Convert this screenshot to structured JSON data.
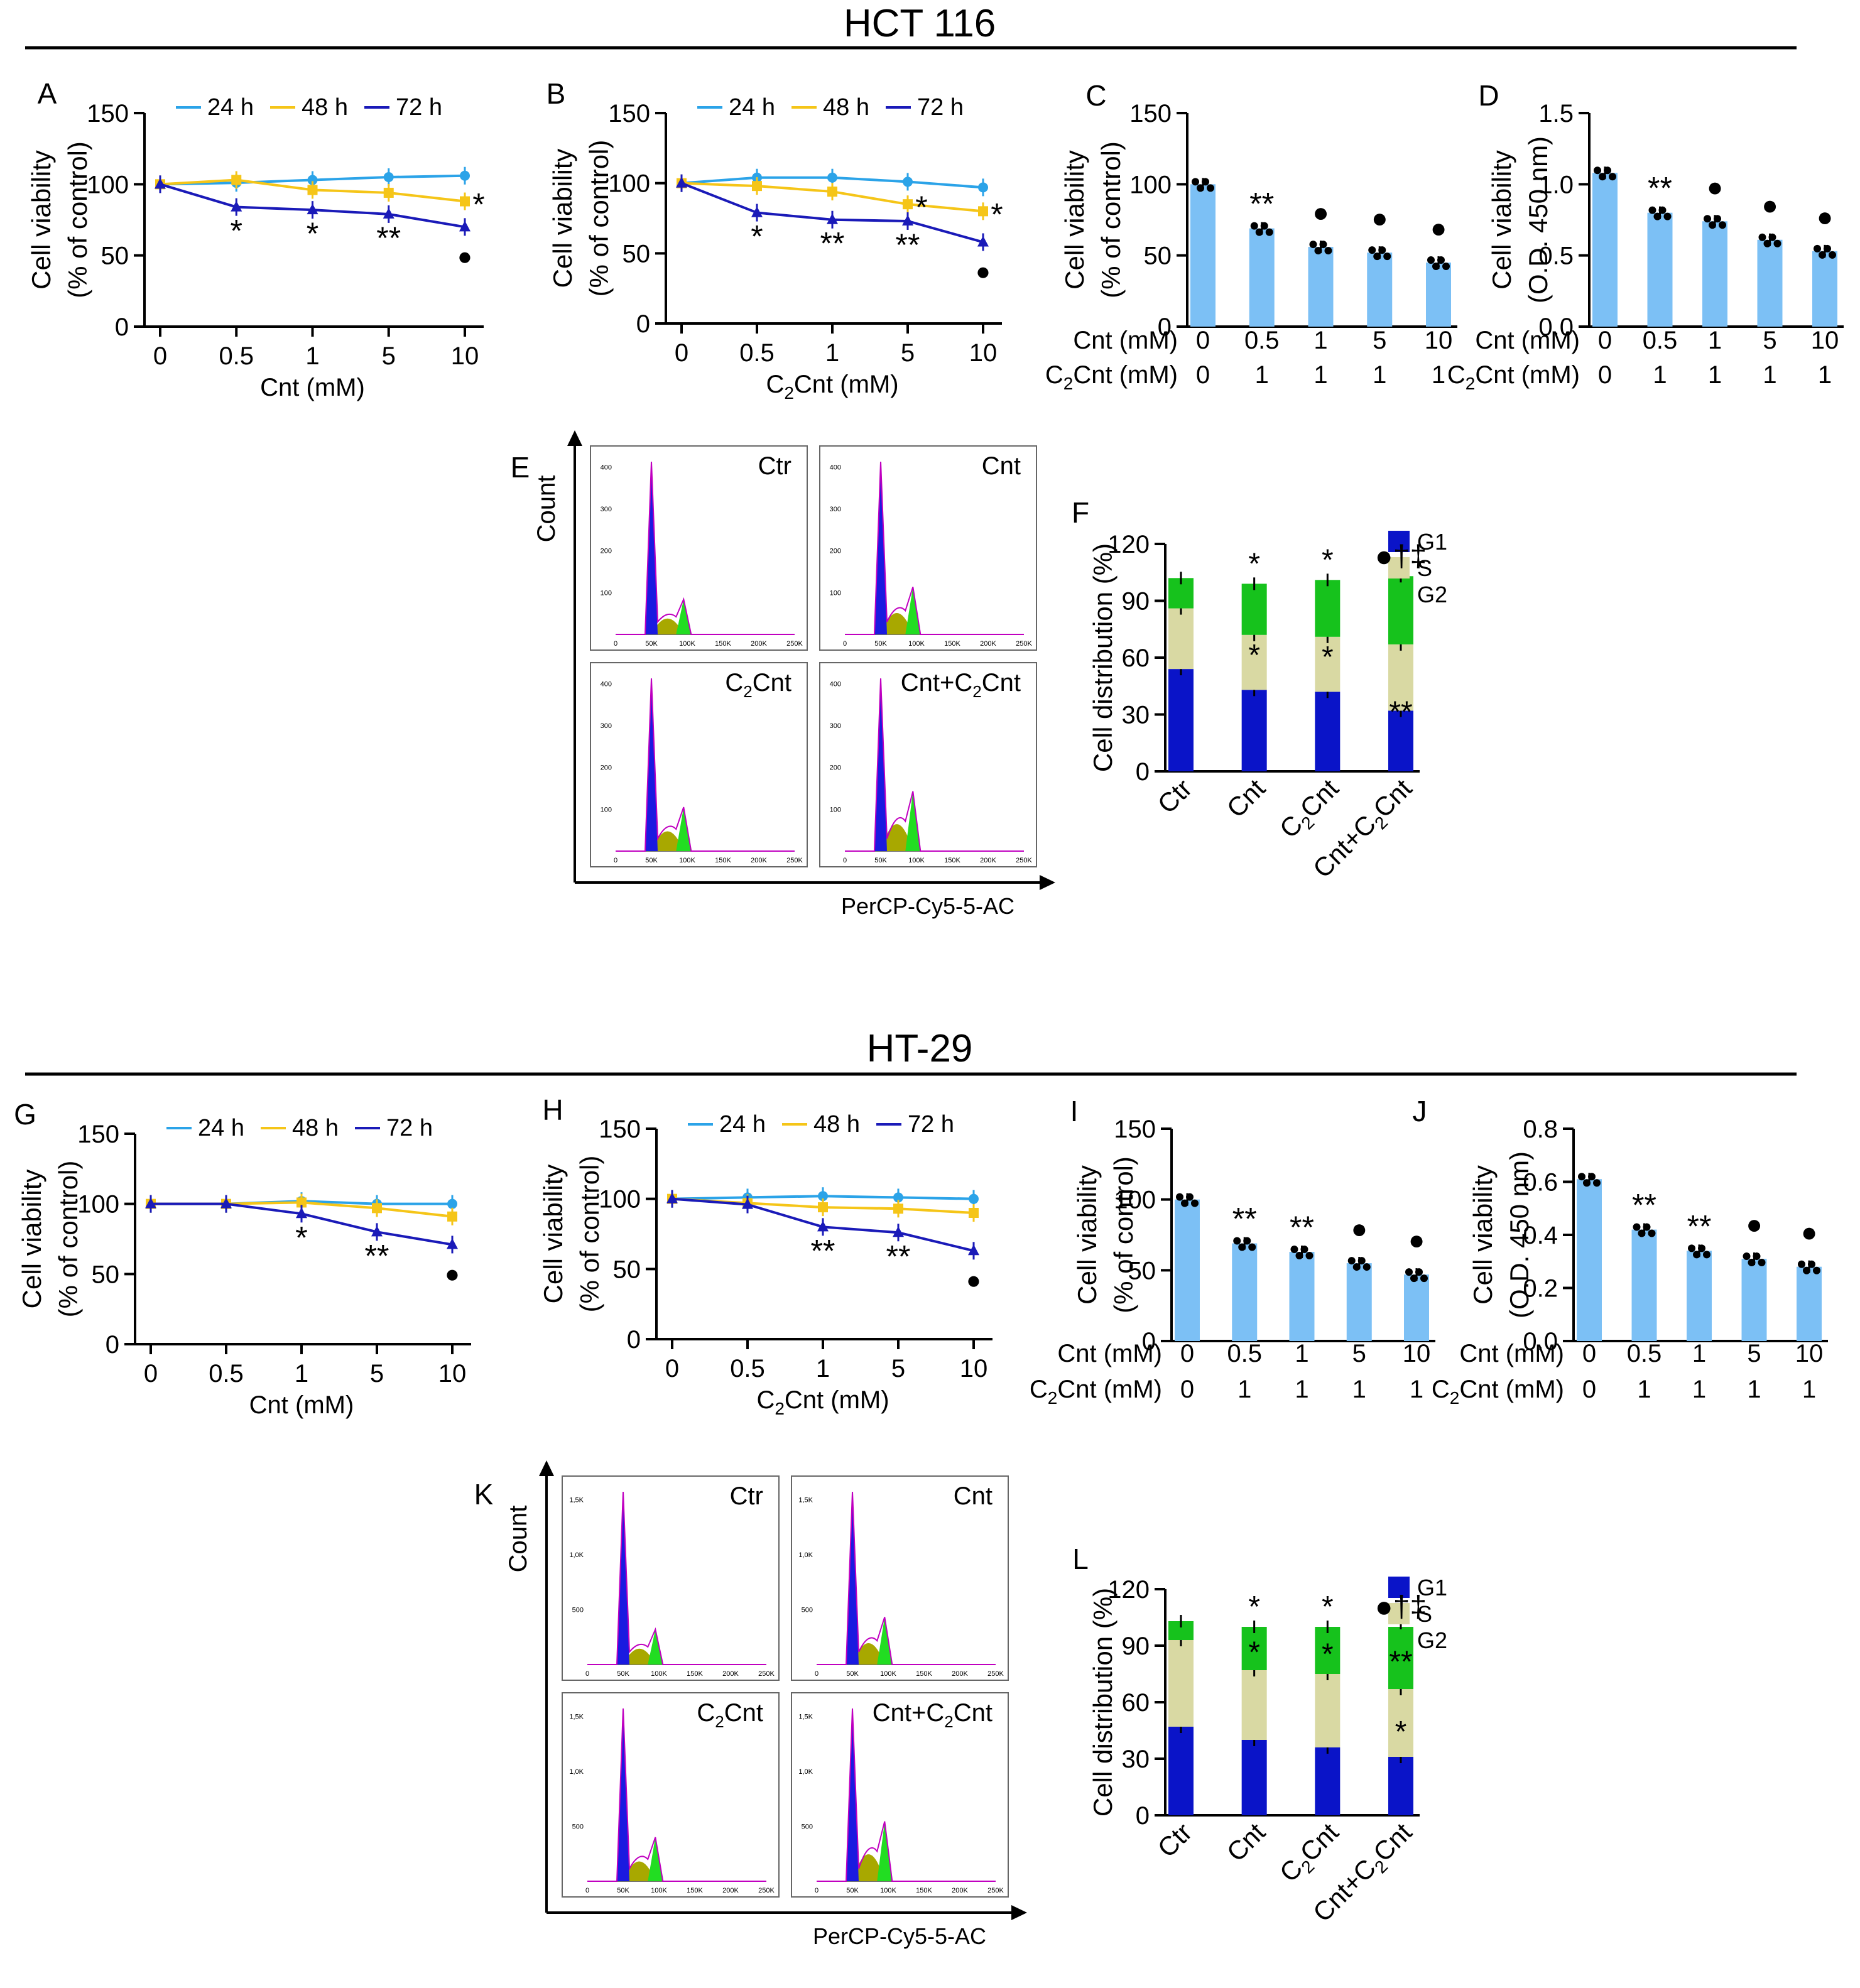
{
  "sections": [
    {
      "title": "HCT 116"
    },
    {
      "title": "HT-29"
    }
  ],
  "colors": {
    "h24": "#2ba3e8",
    "h48": "#f5c518",
    "h72": "#1a1ab8",
    "bar": "#7cc0f5",
    "g1": "#0a14c8",
    "s": "#d9d9a3",
    "g2": "#16c21c",
    "flowPurple": "#c000c0",
    "flowBlue": "#1a1ae0",
    "flowOlive": "#a8a800",
    "flowGreen": "#22dd22"
  },
  "labels": {
    "yViab1": "Cell viability",
    "yViab2": "(% of control)",
    "yOD2": "(O.D. 450 nm)",
    "yDist": "Cell distribution (%)",
    "xCnt": "Cnt (mM)",
    "xC2": "C",
    "xC2b": "2",
    "xC2c": "Cnt (mM)",
    "rowCnt": "Cnt (mM)",
    "rowC2a": "C",
    "rowC2b": "2",
    "rowC2c": "Cnt (mM)",
    "count": "Count",
    "percp": "PerCP-Cy5-5-AC"
  },
  "chart_data": [
    {
      "panel": "A",
      "type": "line",
      "title": "",
      "xlabel": "Cnt (mM)",
      "ylabel": "Cell viability (% of control)",
      "categories": [
        "0",
        "0.5",
        "1",
        "5",
        "10"
      ],
      "ylim": [
        0,
        150
      ],
      "yticks": [
        "0",
        "50",
        "100",
        "150"
      ],
      "series": [
        {
          "name": "24 h",
          "values": [
            100,
            101,
            103,
            105,
            106
          ]
        },
        {
          "name": "48 h",
          "values": [
            100,
            103,
            96,
            94,
            88
          ]
        },
        {
          "name": "72 h",
          "values": [
            100,
            84,
            82,
            79,
            70
          ]
        }
      ],
      "annotations": [
        {
          "at": 1,
          "text": "*"
        },
        {
          "at": 2,
          "text": "*"
        },
        {
          "at": 3,
          "text": "**"
        },
        {
          "at": 4,
          "text": "*"
        },
        {
          "at": 4,
          "text": "●"
        }
      ]
    },
    {
      "panel": "B",
      "type": "line",
      "xlabel": "C2Cnt (mM)",
      "ylabel": "Cell viability (% of control)",
      "categories": [
        "0",
        "0.5",
        "1",
        "5",
        "10"
      ],
      "ylim": [
        0,
        150
      ],
      "yticks": [
        "0",
        "50",
        "100",
        "150"
      ],
      "series": [
        {
          "name": "24 h",
          "values": [
            100,
            104,
            104,
            101,
            97
          ]
        },
        {
          "name": "48 h",
          "values": [
            100,
            98,
            94,
            85,
            80
          ]
        },
        {
          "name": "72 h",
          "values": [
            100,
            79,
            74,
            73,
            58
          ]
        }
      ],
      "annotations": [
        {
          "at": 1,
          "text": "*"
        },
        {
          "at": 2,
          "text": "**"
        },
        {
          "at": 3,
          "text": "**"
        },
        {
          "at": 3,
          "text": "*"
        },
        {
          "at": 4,
          "text": "*"
        },
        {
          "at": 4,
          "text": "●"
        }
      ]
    },
    {
      "panel": "C",
      "type": "bar",
      "ylabel": "Cell viability (% of control)",
      "categories_cnt": [
        "0",
        "0.5",
        "1",
        "5",
        "10"
      ],
      "categories_c2": [
        "0",
        "1",
        "1",
        "1",
        "1"
      ],
      "ylim": [
        0,
        150
      ],
      "yticks": [
        "0",
        "50",
        "100",
        "150"
      ],
      "values": [
        100,
        69,
        56,
        52,
        45
      ],
      "annotations": [
        {
          "at": 1,
          "text": "**"
        },
        {
          "at": 2,
          "text": "●"
        },
        {
          "at": 3,
          "text": "●"
        },
        {
          "at": 4,
          "text": "●"
        }
      ]
    },
    {
      "panel": "D",
      "type": "bar",
      "ylabel": "Cell viability (O.D. 450 nm)",
      "categories_cnt": [
        "0",
        "0.5",
        "1",
        "5",
        "10"
      ],
      "categories_c2": [
        "0",
        "1",
        "1",
        "1",
        "1"
      ],
      "ylim": [
        0,
        1.5
      ],
      "yticks": [
        "0.0",
        "0.5",
        "1.0",
        "1.5"
      ],
      "values": [
        1.08,
        0.8,
        0.74,
        0.61,
        0.53
      ],
      "annotations": [
        {
          "at": 1,
          "text": "**"
        },
        {
          "at": 2,
          "text": "●"
        },
        {
          "at": 3,
          "text": "●"
        },
        {
          "at": 4,
          "text": "●"
        }
      ]
    },
    {
      "panel": "F",
      "type": "bar",
      "stacked": true,
      "ylabel": "Cell distribution (%)",
      "categories": [
        "Ctr",
        "Cnt",
        "C2Cnt",
        "Cnt+C2Cnt"
      ],
      "ylim": [
        0,
        120
      ],
      "yticks": [
        "0",
        "30",
        "60",
        "90",
        "120"
      ],
      "series": [
        {
          "name": "G1",
          "values": [
            54,
            43,
            42,
            32
          ]
        },
        {
          "name": "S",
          "values": [
            32,
            29,
            29,
            35
          ]
        },
        {
          "name": "G2",
          "values": [
            16,
            27,
            30,
            36
          ]
        }
      ],
      "annotations": [
        {
          "bar": 1,
          "text": "*",
          "pos": "top"
        },
        {
          "bar": 2,
          "text": "*",
          "pos": "top"
        },
        {
          "bar": 3,
          "text": "●†‡",
          "pos": "top"
        },
        {
          "bar": 1,
          "text": "*",
          "pos": "mid"
        },
        {
          "bar": 2,
          "text": "*",
          "pos": "mid"
        },
        {
          "bar": 3,
          "text": "**",
          "pos": "low"
        }
      ]
    },
    {
      "panel": "G",
      "type": "line",
      "xlabel": "Cnt (mM)",
      "ylabel": "Cell viability (% of control)",
      "categories": [
        "0",
        "0.5",
        "1",
        "5",
        "10"
      ],
      "ylim": [
        0,
        150
      ],
      "yticks": [
        "0",
        "50",
        "100",
        "150"
      ],
      "series": [
        {
          "name": "24 h",
          "values": [
            100,
            100,
            102,
            100,
            100
          ]
        },
        {
          "name": "48 h",
          "values": [
            100,
            100,
            101,
            97,
            91
          ]
        },
        {
          "name": "72 h",
          "values": [
            100,
            100,
            93,
            80,
            71
          ]
        }
      ],
      "annotations": [
        {
          "at": 2,
          "text": "*"
        },
        {
          "at": 3,
          "text": "**"
        },
        {
          "at": 4,
          "text": "●"
        }
      ]
    },
    {
      "panel": "H",
      "type": "line",
      "xlabel": "C2Cnt (mM)",
      "ylabel": "Cell viability (% of control)",
      "categories": [
        "0",
        "0.5",
        "1",
        "5",
        "10"
      ],
      "ylim": [
        0,
        150
      ],
      "yticks": [
        "0",
        "50",
        "100",
        "150"
      ],
      "series": [
        {
          "name": "24 h",
          "values": [
            100,
            101,
            102,
            101,
            100
          ]
        },
        {
          "name": "48 h",
          "values": [
            100,
            97,
            94,
            93,
            90
          ]
        },
        {
          "name": "72 h",
          "values": [
            100,
            96,
            80,
            76,
            63
          ]
        }
      ],
      "annotations": [
        {
          "at": 2,
          "text": "**"
        },
        {
          "at": 3,
          "text": "**"
        },
        {
          "at": 4,
          "text": "●"
        }
      ]
    },
    {
      "panel": "I",
      "type": "bar",
      "ylabel": "Cell viability (% of control)",
      "categories_cnt": [
        "0",
        "0.5",
        "1",
        "5",
        "10"
      ],
      "categories_c2": [
        "0",
        "1",
        "1",
        "1",
        "1"
      ],
      "ylim": [
        0,
        150
      ],
      "yticks": [
        "0",
        "50",
        "100",
        "150"
      ],
      "values": [
        100,
        69,
        63,
        55,
        47
      ],
      "annotations": [
        {
          "at": 1,
          "text": "**"
        },
        {
          "at": 2,
          "text": "**"
        },
        {
          "at": 3,
          "text": "●"
        },
        {
          "at": 4,
          "text": "●"
        }
      ]
    },
    {
      "panel": "J",
      "type": "bar",
      "ylabel": "Cell viability (O.D. 450 nm)",
      "categories_cnt": [
        "0",
        "0.5",
        "1",
        "5",
        "10"
      ],
      "categories_c2": [
        "0",
        "1",
        "1",
        "1",
        "1"
      ],
      "ylim": [
        0,
        0.8
      ],
      "yticks": [
        "0.0",
        "0.2",
        "0.4",
        "0.6",
        "0.8"
      ],
      "values": [
        0.61,
        0.42,
        0.34,
        0.31,
        0.28
      ],
      "annotations": [
        {
          "at": 1,
          "text": "**"
        },
        {
          "at": 2,
          "text": "**"
        },
        {
          "at": 3,
          "text": "●"
        },
        {
          "at": 4,
          "text": "●"
        }
      ]
    },
    {
      "panel": "L",
      "type": "bar",
      "stacked": true,
      "ylabel": "Cell distribution (%)",
      "categories": [
        "Ctr",
        "Cnt",
        "C2Cnt",
        "Cnt+C2Cnt"
      ],
      "ylim": [
        0,
        120
      ],
      "yticks": [
        "0",
        "30",
        "60",
        "90",
        "120"
      ],
      "series": [
        {
          "name": "G1",
          "values": [
            47,
            40,
            36,
            31
          ]
        },
        {
          "name": "S",
          "values": [
            46,
            37,
            39,
            36
          ]
        },
        {
          "name": "G2",
          "values": [
            10,
            23,
            25,
            33
          ]
        }
      ],
      "annotations": [
        {
          "bar": 1,
          "text": "*",
          "pos": "top"
        },
        {
          "bar": 2,
          "text": "*",
          "pos": "top"
        },
        {
          "bar": 3,
          "text": "●†‡",
          "pos": "top"
        },
        {
          "bar": 1,
          "text": "*",
          "pos": "g2"
        },
        {
          "bar": 2,
          "text": "*",
          "pos": "g2"
        },
        {
          "bar": 3,
          "text": "**",
          "pos": "g2"
        },
        {
          "bar": 3,
          "text": "*",
          "pos": "s"
        }
      ]
    },
    {
      "panel": "E",
      "type": "histogram",
      "subpanels": [
        "Ctr",
        "Cnt",
        "C2Cnt",
        "Cnt+C2Cnt"
      ],
      "xticks": [
        "0",
        "50K",
        "100K",
        "150K",
        "200K",
        "250K"
      ],
      "yticks": [
        "100",
        "200",
        "300",
        "400"
      ],
      "xlabel": "PerCP-Cy5-5-AC",
      "ylabel": "Count"
    },
    {
      "panel": "K",
      "type": "histogram",
      "subpanels": [
        "Ctr",
        "Cnt",
        "C2Cnt",
        "Cnt+C2Cnt"
      ],
      "xticks": [
        "0",
        "50K",
        "100K",
        "150K",
        "200K",
        "250K"
      ],
      "yticks": [
        "500",
        "1,0K",
        "1,5K"
      ],
      "xlabel": "PerCP-Cy5-5-AC",
      "ylabel": "Count"
    }
  ]
}
